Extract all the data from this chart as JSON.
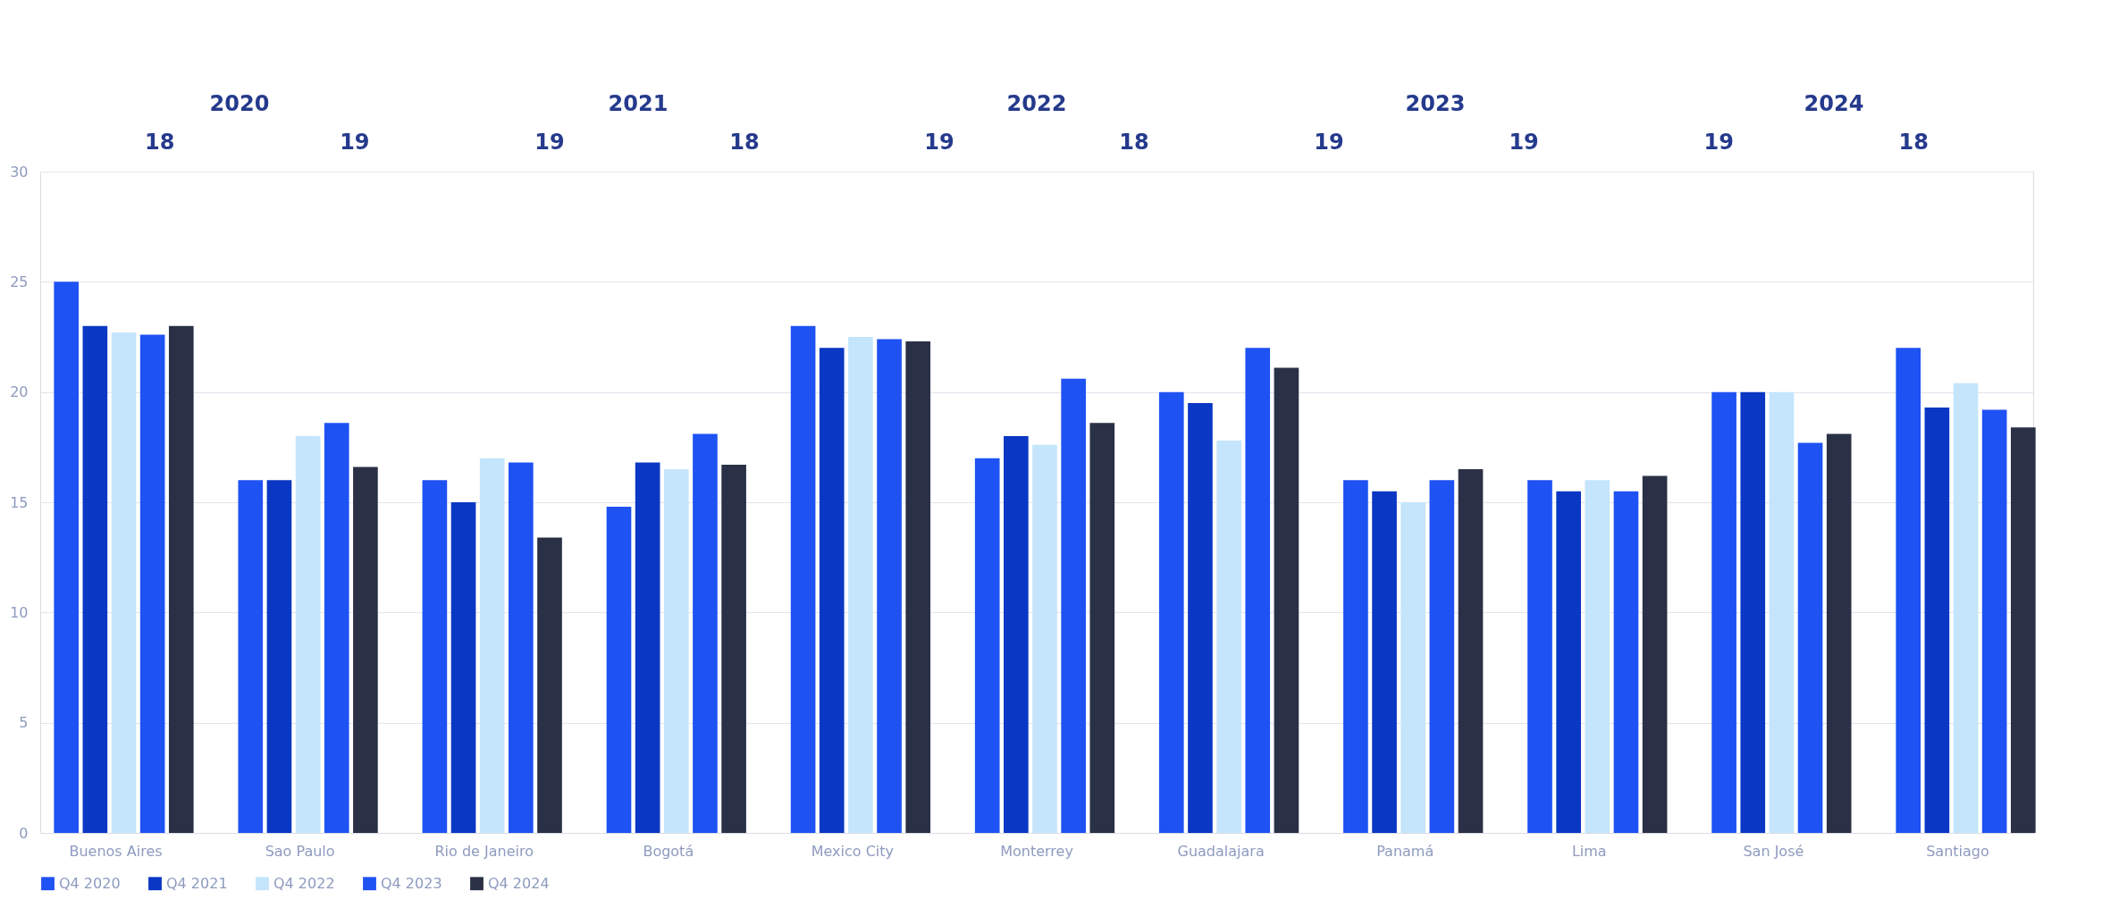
{
  "chart_data": {
    "type": "bar",
    "categories": [
      "Buenos Aires",
      "Sao Paulo",
      "Rio de Janeiro",
      "Bogotá",
      "Mexico City",
      "Monterrey",
      "Guadalajara",
      "Panamá",
      "Lima",
      "San José",
      "Santiago"
    ],
    "series": [
      {
        "name": "Q4 2020",
        "color": "#1e52f3",
        "values": [
          25,
          16,
          16,
          14.8,
          23,
          17,
          20,
          16,
          16,
          20,
          22
        ]
      },
      {
        "name": "Q4 2021",
        "color": "#0a37c4",
        "values": [
          23,
          16,
          15,
          16.8,
          22,
          18,
          19.5,
          15.5,
          15.5,
          20,
          19.3
        ]
      },
      {
        "name": "Q4 2022",
        "color": "#c4e5fc",
        "values": [
          22.7,
          18,
          17,
          16.5,
          22.5,
          17.6,
          17.8,
          15,
          16,
          20,
          20.4
        ]
      },
      {
        "name": "Q4 2023",
        "color": "#1e52f3",
        "values": [
          22.6,
          18.6,
          16.8,
          18.1,
          22.4,
          20.6,
          22,
          16,
          15.5,
          17.7,
          19.2
        ]
      },
      {
        "name": "Q4 2024",
        "color": "#2a3147",
        "values": [
          23,
          16.6,
          13.4,
          16.7,
          22.3,
          18.6,
          21.1,
          16.5,
          16.2,
          18.1,
          18.4
        ]
      }
    ],
    "ylim": [
      0,
      30
    ],
    "yticks": [
      0,
      5,
      10,
      15,
      20,
      25,
      30
    ],
    "grid": "y",
    "legend": "bottom",
    "annotations": [
      "2020",
      "2021",
      "2022",
      "2023",
      "2024",
      "18",
      "19",
      "19",
      "18",
      "19",
      "18",
      "19",
      "19",
      "19",
      "18"
    ]
  }
}
